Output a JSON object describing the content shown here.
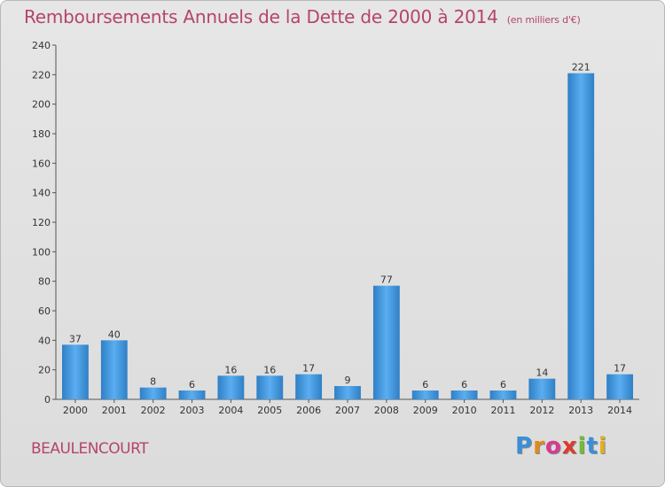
{
  "header": {
    "title": "Remboursements Annuels de la Dette de 2000 à 2014",
    "unit": "(en milliers d'€)"
  },
  "footer": {
    "town": "BEAULENCOURT",
    "logo_letters": [
      "P",
      "r",
      "o",
      "x",
      "i",
      "t",
      "i"
    ],
    "logo_colors": [
      "#3a8fd8",
      "#e08a1e",
      "#d83a8f",
      "#e03a2e",
      "#6fbf2e",
      "#3a8fd8",
      "#e0b01e"
    ]
  },
  "chart_data": {
    "type": "bar",
    "categories": [
      "2000",
      "2001",
      "2002",
      "2003",
      "2004",
      "2005",
      "2006",
      "2007",
      "2008",
      "2009",
      "2010",
      "2011",
      "2012",
      "2013",
      "2014"
    ],
    "values": [
      37,
      40,
      8,
      6,
      16,
      16,
      17,
      9,
      77,
      6,
      6,
      6,
      14,
      221,
      17
    ],
    "title": "Remboursements Annuels de la Dette de 2000 à 2014",
    "ylim": [
      0,
      240
    ],
    "yticks": [
      0,
      20,
      40,
      60,
      80,
      100,
      120,
      140,
      160,
      180,
      200,
      220,
      240
    ],
    "bar_color": "#3a8fd8",
    "grid": false
  }
}
